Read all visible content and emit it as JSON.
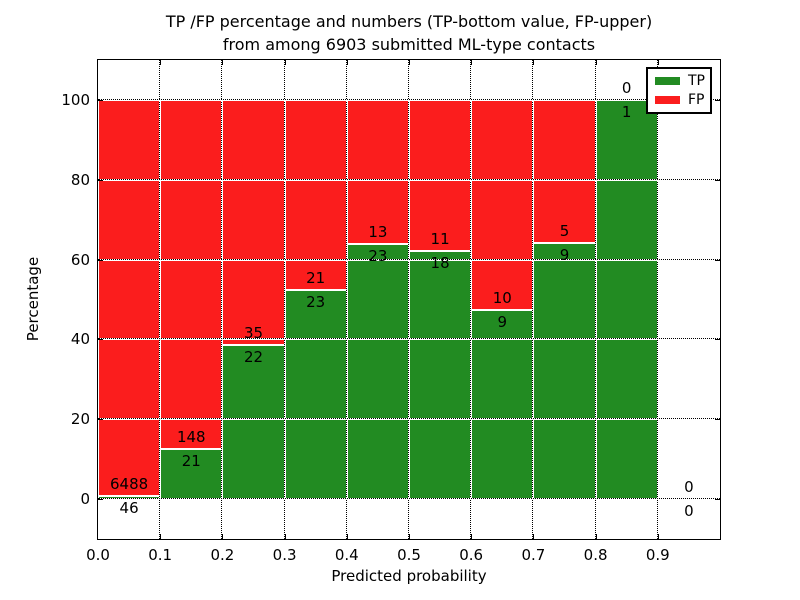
{
  "title": {
    "line1": "TP /FP percentage and numbers (TP-bottom value, FP-upper)",
    "line2": "from among 6903 submitted ML-type contacts"
  },
  "axes": {
    "x_label": "Predicted probability",
    "y_label": "Percentage",
    "x_ticks": [
      "0.0",
      "0.1",
      "0.2",
      "0.3",
      "0.4",
      "0.5",
      "0.6",
      "0.7",
      "0.8",
      "0.9"
    ],
    "y_ticks": [
      "0",
      "20",
      "40",
      "60",
      "80",
      "100"
    ]
  },
  "legend": {
    "entries": [
      {
        "label": "TP",
        "color": "#228B22"
      },
      {
        "label": "FP",
        "color": "#FB1D1D"
      }
    ]
  },
  "chart_data": {
    "type": "bar",
    "subtype": "stacked-percentage-histogram",
    "title": "TP /FP percentage and numbers (TP-bottom value, FP-upper) from among 6903 submitted ML-type contacts",
    "xlabel": "Predicted probability",
    "ylabel": "Percentage",
    "grid": true,
    "legend_position": "upper right",
    "ylim": [
      0,
      100
    ],
    "x_bin_edges": [
      0.0,
      0.1,
      0.2,
      0.3,
      0.4,
      0.5,
      0.6,
      0.7,
      0.8,
      0.9,
      1.0
    ],
    "categories": [
      "0.0-0.1",
      "0.1-0.2",
      "0.2-0.3",
      "0.3-0.4",
      "0.4-0.5",
      "0.5-0.6",
      "0.6-0.7",
      "0.7-0.8",
      "0.8-0.9",
      "0.9-1.0"
    ],
    "series": [
      {
        "name": "TP",
        "color": "#228B22",
        "counts": [
          46,
          21,
          22,
          23,
          23,
          18,
          9,
          9,
          1,
          0
        ]
      },
      {
        "name": "FP",
        "color": "#FB1D1D",
        "counts": [
          6488,
          148,
          35,
          21,
          13,
          11,
          10,
          5,
          0,
          0
        ]
      }
    ],
    "tp_percent_of_bin": [
      0.7,
      12.4,
      38.6,
      52.3,
      63.9,
      62.1,
      47.4,
      64.3,
      100.0,
      null
    ],
    "total_contacts": 6903
  }
}
